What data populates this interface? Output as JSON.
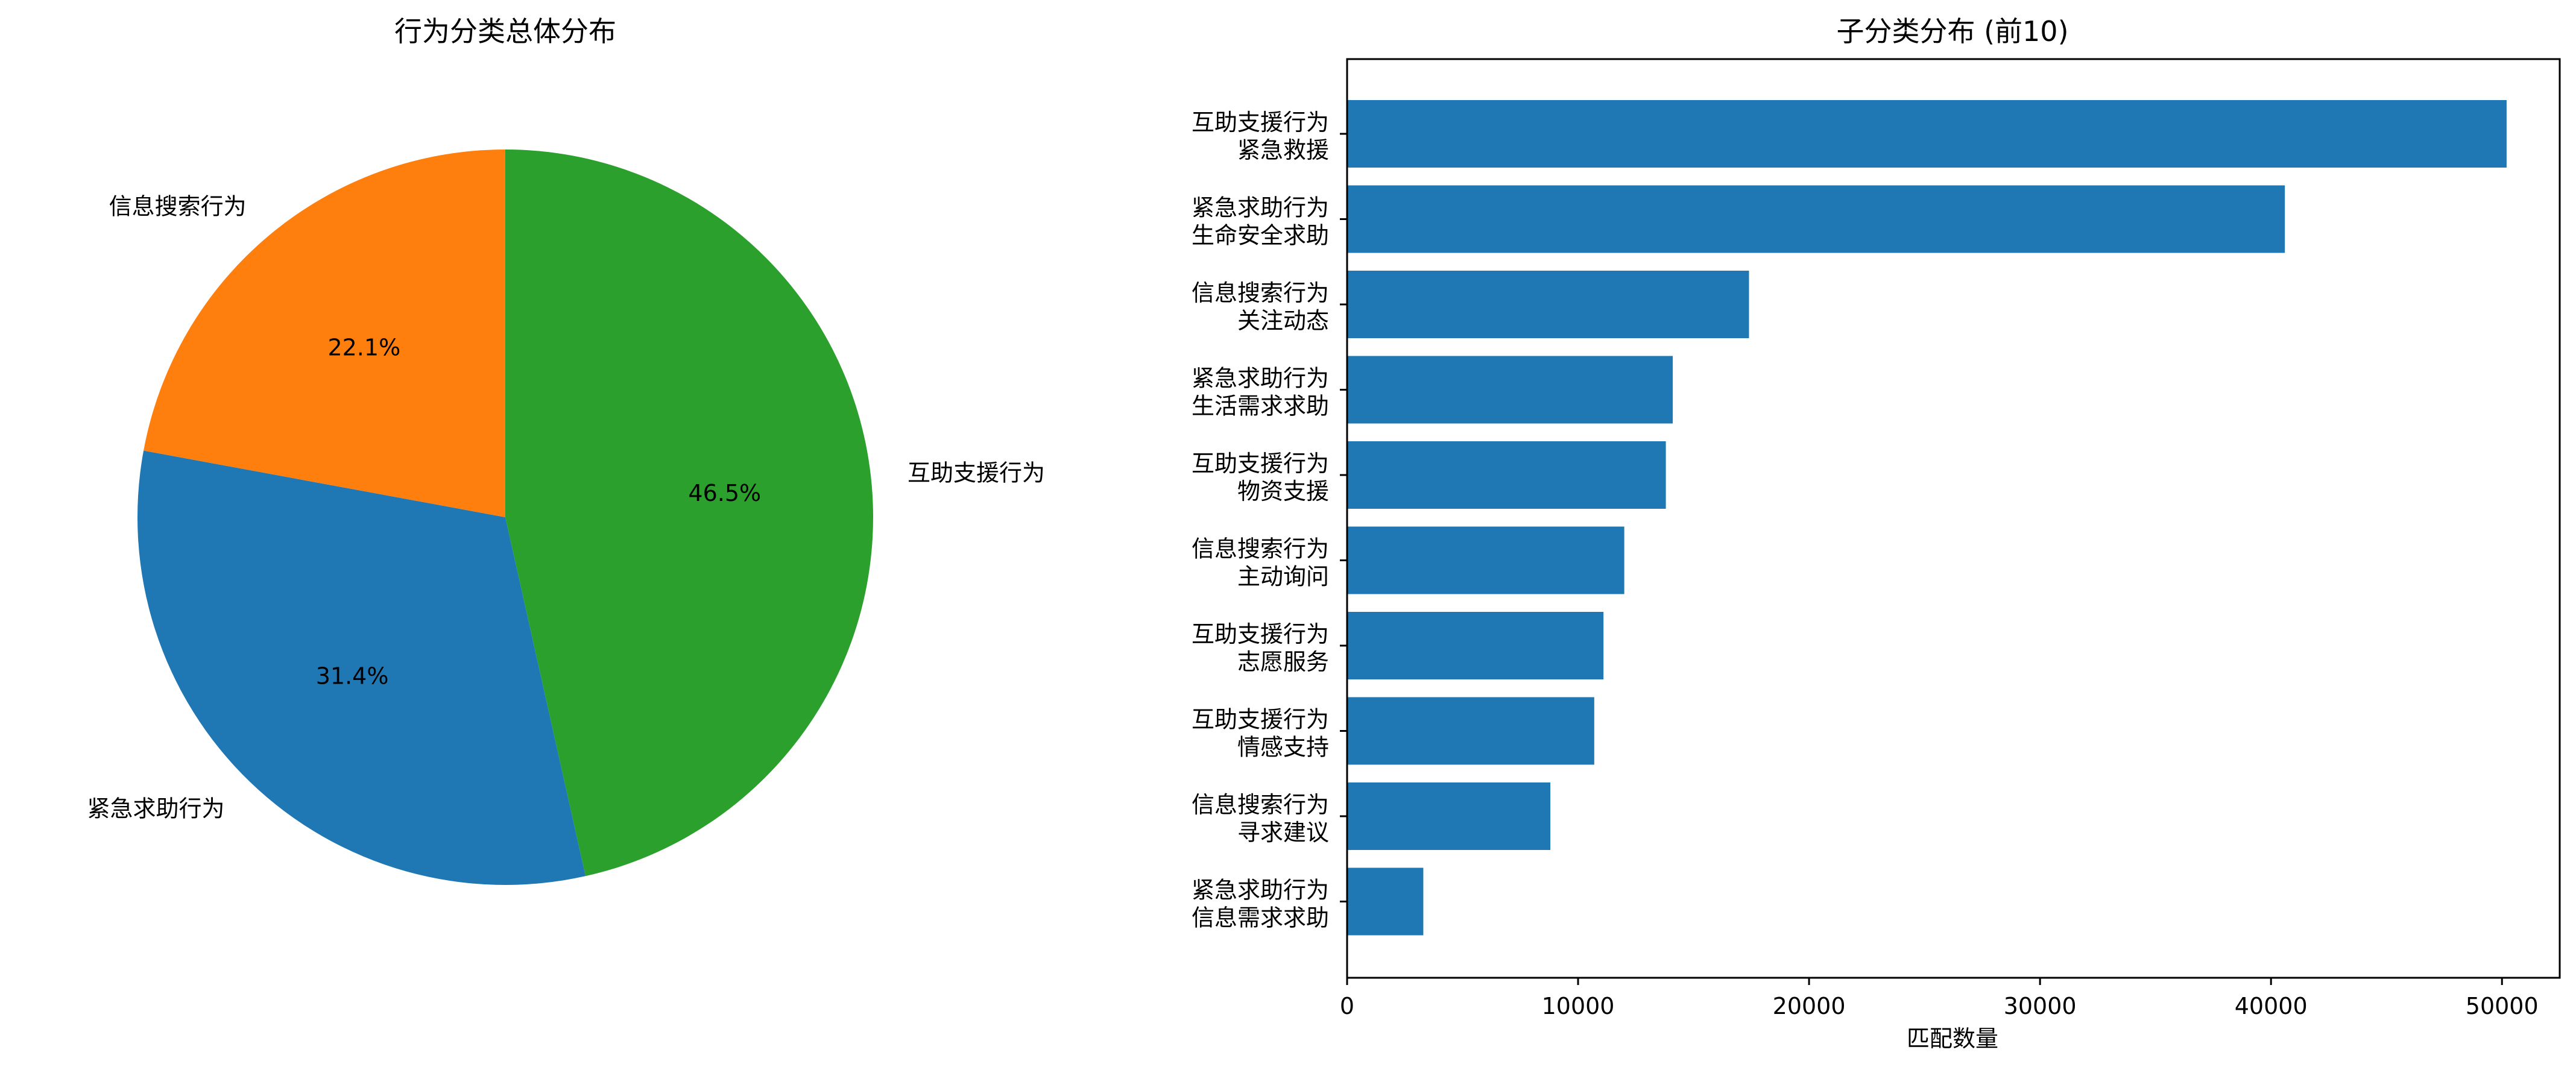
{
  "chart_data": [
    {
      "type": "pie",
      "title": "行为分类总体分布",
      "slices": [
        {
          "label": "互助支援行为",
          "value": 46.5,
          "pct_label": "46.5%",
          "color": "#2ca02c"
        },
        {
          "label": "紧急求助行为",
          "value": 31.4,
          "pct_label": "31.4%",
          "color": "#1f77b4"
        },
        {
          "label": "信息搜索行为",
          "value": 22.1,
          "pct_label": "22.1%",
          "color": "#ff7f0e"
        }
      ]
    },
    {
      "type": "bar",
      "orientation": "horizontal",
      "title": "子分类分布 (前10)",
      "xlabel": "匹配数量",
      "ylabel": "",
      "xlim": [
        0,
        52500
      ],
      "xticks": [
        0,
        10000,
        20000,
        30000,
        40000,
        50000
      ],
      "bar_color": "#1f77b4",
      "categories": [
        [
          "互助支援行为",
          "紧急救援"
        ],
        [
          "紧急求助行为",
          "生命安全求助"
        ],
        [
          "信息搜索行为",
          "关注动态"
        ],
        [
          "紧急求助行为",
          "生活需求求助"
        ],
        [
          "互助支援行为",
          "物资支援"
        ],
        [
          "信息搜索行为",
          "主动询问"
        ],
        [
          "互助支援行为",
          "志愿服务"
        ],
        [
          "互助支援行为",
          "情感支持"
        ],
        [
          "信息搜索行为",
          "寻求建议"
        ],
        [
          "紧急求助行为",
          "信息需求求助"
        ]
      ],
      "values": [
        50200,
        40600,
        17400,
        14100,
        13800,
        12000,
        11100,
        10700,
        8800,
        3300
      ]
    }
  ]
}
